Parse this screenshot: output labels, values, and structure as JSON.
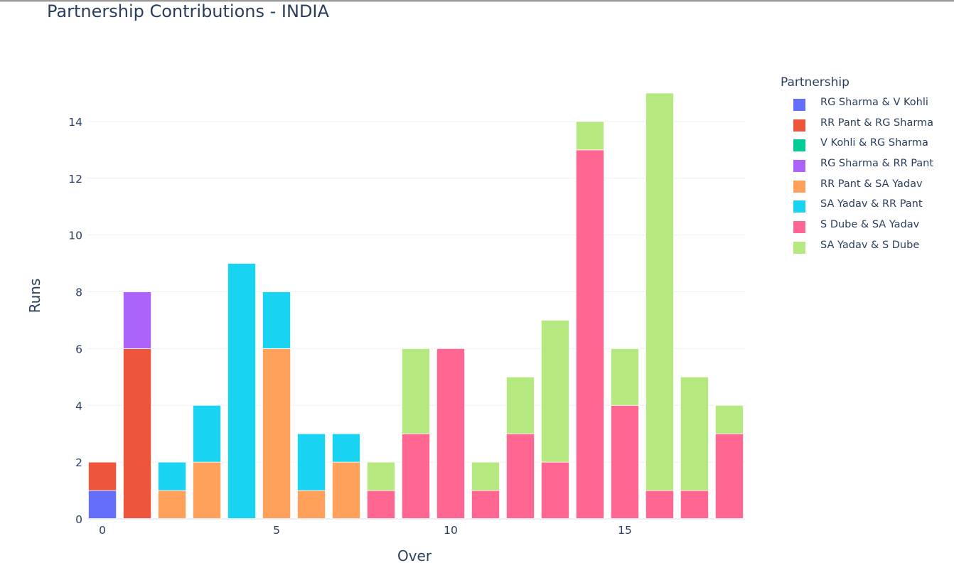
{
  "chart_data": {
    "type": "bar",
    "stacked": true,
    "title": "Partnership Contributions - INDIA",
    "xlabel": "Over",
    "ylabel": "Runs",
    "xlim": [
      -0.45,
      18.45
    ],
    "ylim": [
      0,
      15.9
    ],
    "x_ticks": [
      0,
      5,
      10,
      15
    ],
    "y_ticks": [
      0,
      2,
      4,
      6,
      8,
      10,
      12,
      14
    ],
    "grid": true,
    "legend_title": "Partnership",
    "legend_position": "right",
    "x": [
      0,
      1,
      2,
      3,
      4,
      5,
      6,
      7,
      8,
      9,
      10,
      11,
      12,
      13,
      14,
      15,
      16,
      17,
      18
    ],
    "series": [
      {
        "name": "RG Sharma & V Kohli",
        "color": "#636efa",
        "values": [
          1,
          0,
          0,
          0,
          0,
          0,
          0,
          0,
          0,
          0,
          0,
          0,
          0,
          0,
          0,
          0,
          0,
          0,
          0
        ]
      },
      {
        "name": "RR Pant & RG Sharma",
        "color": "#ef553b",
        "values": [
          1,
          6,
          0,
          0,
          0,
          0,
          0,
          0,
          0,
          0,
          0,
          0,
          0,
          0,
          0,
          0,
          0,
          0,
          0
        ]
      },
      {
        "name": "V Kohli & RG Sharma",
        "color": "#00cc96",
        "values": [
          0,
          0,
          0,
          0,
          0,
          0,
          0,
          0,
          0,
          0,
          0,
          0,
          0,
          0,
          0,
          0,
          0,
          0,
          0
        ]
      },
      {
        "name": "RG Sharma & RR Pant",
        "color": "#ab63fa",
        "values": [
          0,
          2,
          0,
          0,
          0,
          0,
          0,
          0,
          0,
          0,
          0,
          0,
          0,
          0,
          0,
          0,
          0,
          0,
          0
        ]
      },
      {
        "name": "RR Pant & SA Yadav",
        "color": "#ffa15a",
        "values": [
          0,
          0,
          1,
          2,
          0,
          6,
          1,
          2,
          0,
          0,
          0,
          0,
          0,
          0,
          0,
          0,
          0,
          0,
          0
        ]
      },
      {
        "name": "SA Yadav & RR Pant",
        "color": "#19d3f3",
        "values": [
          0,
          0,
          1,
          2,
          9,
          2,
          2,
          1,
          0,
          0,
          0,
          0,
          0,
          0,
          0,
          0,
          0,
          0,
          0
        ]
      },
      {
        "name": "S Dube & SA Yadav",
        "color": "#ff6692",
        "values": [
          0,
          0,
          0,
          0,
          0,
          0,
          0,
          0,
          1,
          3,
          6,
          1,
          3,
          2,
          13,
          4,
          1,
          1,
          3
        ]
      },
      {
        "name": "SA Yadav & S Dube",
        "color": "#b6e880",
        "values": [
          0,
          0,
          0,
          0,
          0,
          0,
          0,
          0,
          1,
          3,
          0,
          1,
          2,
          5,
          1,
          2,
          14,
          4,
          1
        ]
      }
    ]
  }
}
